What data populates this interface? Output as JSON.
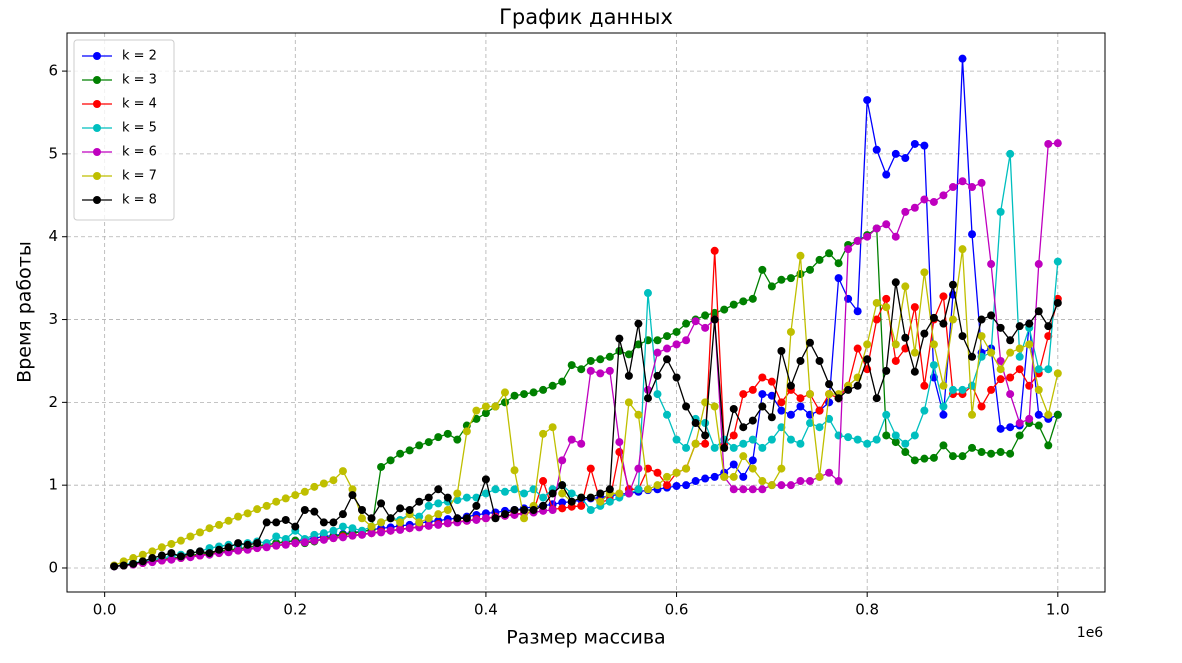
{
  "chart_data": {
    "type": "line",
    "title": "График данных",
    "xlabel": "Размер массива",
    "ylabel": "Время работы",
    "x_offset_label": "1e6",
    "grid": true,
    "legend": "upper left",
    "xlim": [
      -39500,
      1049500
    ],
    "ylim": [
      -0.29,
      6.46
    ],
    "xticks": [
      {
        "value": 0,
        "label": "0.0"
      },
      {
        "value": 200000,
        "label": "0.2"
      },
      {
        "value": 400000,
        "label": "0.4"
      },
      {
        "value": 600000,
        "label": "0.6"
      },
      {
        "value": 800000,
        "label": "0.8"
      },
      {
        "value": 1000000,
        "label": "1.0"
      }
    ],
    "yticks": [
      0,
      1,
      2,
      3,
      4,
      5,
      6
    ],
    "x": [
      10000,
      20000,
      30000,
      40000,
      50000,
      60000,
      70000,
      80000,
      90000,
      100000,
      110000,
      120000,
      130000,
      140000,
      150000,
      160000,
      170000,
      180000,
      190000,
      200000,
      210000,
      220000,
      230000,
      240000,
      250000,
      260000,
      270000,
      280000,
      290000,
      300000,
      310000,
      320000,
      330000,
      340000,
      350000,
      360000,
      370000,
      380000,
      390000,
      400000,
      410000,
      420000,
      430000,
      440000,
      450000,
      460000,
      470000,
      480000,
      490000,
      500000,
      510000,
      520000,
      530000,
      540000,
      550000,
      560000,
      570000,
      580000,
      590000,
      600000,
      610000,
      620000,
      630000,
      640000,
      650000,
      660000,
      670000,
      680000,
      690000,
      700000,
      710000,
      720000,
      730000,
      740000,
      750000,
      760000,
      770000,
      780000,
      790000,
      800000,
      810000,
      820000,
      830000,
      840000,
      850000,
      860000,
      870000,
      880000,
      890000,
      900000,
      910000,
      920000,
      930000,
      940000,
      950000,
      960000,
      970000,
      980000,
      990000,
      1000000
    ],
    "series": [
      {
        "name": "k = 2",
        "color": "#0000ff",
        "values": [
          0.02,
          0.03,
          0.05,
          0.07,
          0.08,
          0.1,
          0.11,
          0.13,
          0.15,
          0.16,
          0.18,
          0.2,
          0.21,
          0.23,
          0.25,
          0.26,
          0.28,
          0.3,
          0.31,
          0.33,
          0.34,
          0.36,
          0.38,
          0.39,
          0.41,
          0.43,
          0.44,
          0.46,
          0.48,
          0.49,
          0.51,
          0.52,
          0.54,
          0.56,
          0.57,
          0.59,
          0.6,
          0.62,
          0.64,
          0.66,
          0.67,
          0.69,
          0.7,
          0.72,
          0.74,
          0.75,
          0.77,
          0.79,
          0.8,
          0.82,
          0.84,
          0.85,
          0.87,
          0.89,
          0.9,
          0.92,
          0.94,
          0.95,
          0.97,
          0.99,
          1.0,
          1.05,
          1.08,
          1.1,
          1.15,
          1.25,
          1.1,
          1.3,
          2.1,
          2.08,
          1.9,
          1.85,
          1.95,
          1.85,
          1.9,
          2.0,
          3.5,
          3.25,
          3.1,
          5.65,
          5.05,
          4.75,
          5.0,
          4.95,
          5.12,
          5.1,
          2.3,
          1.85,
          3.3,
          6.15,
          4.03,
          2.6,
          2.65,
          1.68,
          1.7,
          1.72,
          2.95,
          1.85,
          1.8,
          1.85
        ]
      },
      {
        "name": "k = 3",
        "color": "#008000",
        "values": [
          0.02,
          0.03,
          0.05,
          0.07,
          0.08,
          0.1,
          0.12,
          0.13,
          0.15,
          0.17,
          0.18,
          0.2,
          0.22,
          0.23,
          0.25,
          0.27,
          0.28,
          0.3,
          0.32,
          0.33,
          0.3,
          0.32,
          0.35,
          0.38,
          0.4,
          0.42,
          0.44,
          0.46,
          1.22,
          1.3,
          1.38,
          1.42,
          1.48,
          1.52,
          1.58,
          1.62,
          1.55,
          1.72,
          1.8,
          1.87,
          1.95,
          2.0,
          2.08,
          2.1,
          2.12,
          2.15,
          2.2,
          2.25,
          2.45,
          2.4,
          2.5,
          2.52,
          2.55,
          2.62,
          2.58,
          2.7,
          2.75,
          2.75,
          2.8,
          2.85,
          2.95,
          3.0,
          3.05,
          3.08,
          3.12,
          3.18,
          3.22,
          3.25,
          3.6,
          3.4,
          3.48,
          3.5,
          3.55,
          3.6,
          3.72,
          3.8,
          3.68,
          3.9,
          3.95,
          4.02,
          4.1,
          1.6,
          1.52,
          1.4,
          1.3,
          1.32,
          1.33,
          1.48,
          1.35,
          1.35,
          1.45,
          1.4,
          1.38,
          1.4,
          1.38,
          1.6,
          1.75,
          1.72,
          1.48,
          1.85
        ]
      },
      {
        "name": "k = 4",
        "color": "#ff0000",
        "values": [
          0.02,
          0.03,
          0.05,
          0.06,
          0.08,
          0.09,
          0.11,
          0.12,
          0.14,
          0.15,
          0.17,
          0.18,
          0.2,
          0.21,
          0.23,
          0.24,
          0.26,
          0.27,
          0.29,
          0.3,
          0.32,
          0.33,
          0.35,
          0.36,
          0.38,
          0.39,
          0.41,
          0.42,
          0.44,
          0.45,
          0.47,
          0.48,
          0.5,
          0.51,
          0.53,
          0.54,
          0.56,
          0.57,
          0.59,
          0.6,
          0.62,
          0.63,
          0.65,
          0.66,
          0.68,
          1.05,
          0.71,
          0.72,
          0.74,
          0.75,
          1.2,
          0.8,
          0.82,
          1.4,
          0.95,
          0.95,
          1.2,
          1.15,
          1.0,
          1.15,
          1.2,
          1.5,
          1.5,
          3.83,
          1.5,
          1.6,
          2.1,
          2.15,
          2.3,
          2.25,
          2.0,
          2.15,
          2.05,
          2.1,
          1.9,
          2.1,
          2.05,
          2.2,
          2.65,
          2.4,
          3.0,
          3.25,
          2.5,
          2.65,
          3.15,
          2.2,
          3.0,
          3.28,
          2.1,
          2.1,
          2.2,
          1.95,
          2.15,
          2.28,
          2.3,
          2.4,
          2.2,
          2.35,
          2.8,
          3.25
        ]
      },
      {
        "name": "k = 5",
        "color": "#00bfbf",
        "values": [
          0.02,
          0.04,
          0.06,
          0.08,
          0.1,
          0.12,
          0.14,
          0.16,
          0.18,
          0.2,
          0.24,
          0.26,
          0.28,
          0.27,
          0.3,
          0.32,
          0.3,
          0.38,
          0.35,
          0.45,
          0.35,
          0.4,
          0.42,
          0.45,
          0.5,
          0.48,
          0.45,
          0.5,
          0.55,
          0.6,
          0.58,
          0.65,
          0.62,
          0.75,
          0.78,
          0.8,
          0.82,
          0.85,
          0.85,
          0.9,
          0.95,
          0.92,
          0.95,
          0.9,
          0.95,
          0.85,
          0.95,
          1.0,
          0.9,
          0.85,
          0.7,
          0.75,
          0.8,
          0.85,
          0.9,
          0.95,
          3.32,
          2.1,
          1.85,
          1.55,
          1.45,
          1.8,
          1.75,
          1.45,
          1.55,
          1.45,
          1.5,
          1.55,
          1.45,
          1.55,
          1.7,
          1.55,
          1.5,
          1.75,
          1.7,
          1.8,
          1.6,
          1.58,
          1.55,
          1.5,
          1.55,
          1.85,
          1.6,
          1.5,
          1.6,
          1.9,
          2.45,
          1.95,
          2.15,
          2.15,
          2.2,
          2.55,
          2.6,
          4.3,
          5.0,
          2.55,
          2.9,
          2.4,
          2.4,
          3.7
        ]
      },
      {
        "name": "k = 6",
        "color": "#bf00bf",
        "values": [
          0.02,
          0.03,
          0.04,
          0.06,
          0.07,
          0.09,
          0.1,
          0.12,
          0.13,
          0.15,
          0.16,
          0.18,
          0.19,
          0.21,
          0.22,
          0.24,
          0.25,
          0.27,
          0.28,
          0.3,
          0.31,
          0.33,
          0.34,
          0.36,
          0.37,
          0.39,
          0.4,
          0.42,
          0.43,
          0.45,
          0.46,
          0.48,
          0.49,
          0.51,
          0.52,
          0.54,
          0.55,
          0.57,
          0.58,
          0.6,
          0.61,
          0.63,
          0.64,
          0.66,
          0.67,
          0.69,
          0.7,
          1.3,
          1.55,
          1.5,
          2.38,
          2.35,
          2.38,
          1.52,
          0.9,
          1.2,
          2.15,
          2.6,
          2.65,
          2.7,
          2.75,
          2.98,
          2.9,
          3.0,
          1.1,
          0.95,
          0.95,
          0.95,
          0.95,
          1.0,
          1.0,
          1.0,
          1.05,
          1.05,
          1.1,
          1.15,
          1.05,
          3.85,
          3.95,
          4.0,
          4.1,
          4.15,
          4.0,
          4.3,
          4.35,
          4.45,
          4.42,
          4.5,
          4.6,
          4.67,
          4.6,
          4.65,
          3.67,
          2.5,
          2.1,
          1.75,
          1.8,
          3.67,
          5.12,
          5.13
        ]
      },
      {
        "name": "k = 7",
        "color": "#bfbf00",
        "values": [
          0.03,
          0.08,
          0.12,
          0.16,
          0.2,
          0.25,
          0.29,
          0.33,
          0.38,
          0.43,
          0.48,
          0.52,
          0.57,
          0.62,
          0.66,
          0.71,
          0.75,
          0.8,
          0.84,
          0.88,
          0.92,
          0.98,
          1.02,
          1.06,
          1.17,
          0.95,
          0.6,
          0.5,
          0.55,
          0.6,
          0.55,
          0.65,
          0.55,
          0.6,
          0.65,
          0.7,
          0.9,
          1.65,
          1.9,
          1.95,
          1.95,
          2.12,
          1.18,
          0.6,
          0.75,
          1.62,
          1.7,
          0.9,
          0.8,
          0.85,
          0.85,
          0.8,
          0.9,
          0.9,
          2.0,
          1.85,
          0.95,
          1.0,
          1.1,
          1.15,
          1.2,
          1.5,
          2.0,
          1.95,
          1.1,
          1.1,
          1.35,
          1.2,
          1.05,
          1.0,
          1.2,
          2.85,
          3.77,
          2.1,
          1.1,
          2.1,
          2.1,
          2.2,
          2.3,
          2.7,
          3.2,
          3.15,
          2.7,
          3.4,
          2.6,
          3.57,
          2.7,
          2.2,
          3.0,
          3.85,
          1.85,
          2.8,
          2.6,
          2.4,
          2.6,
          2.65,
          2.7,
          2.15,
          1.85,
          2.35
        ]
      },
      {
        "name": "k = 8",
        "color": "#000000",
        "values": [
          0.02,
          0.03,
          0.05,
          0.08,
          0.12,
          0.15,
          0.18,
          0.14,
          0.18,
          0.2,
          0.18,
          0.22,
          0.25,
          0.3,
          0.28,
          0.3,
          0.55,
          0.55,
          0.58,
          0.5,
          0.7,
          0.68,
          0.55,
          0.55,
          0.65,
          0.88,
          0.7,
          0.6,
          0.78,
          0.6,
          0.72,
          0.7,
          0.8,
          0.85,
          0.95,
          0.85,
          0.6,
          0.6,
          0.75,
          1.07,
          0.6,
          0.65,
          0.7,
          0.7,
          0.7,
          0.75,
          0.9,
          1.0,
          0.8,
          0.85,
          0.85,
          0.9,
          0.95,
          2.77,
          2.32,
          2.95,
          2.05,
          2.32,
          2.52,
          2.3,
          1.95,
          1.75,
          1.6,
          3.0,
          1.45,
          1.92,
          1.7,
          1.78,
          1.95,
          1.82,
          2.62,
          2.2,
          2.5,
          2.72,
          2.5,
          2.22,
          2.05,
          2.15,
          2.2,
          2.52,
          2.05,
          2.38,
          3.45,
          2.78,
          2.37,
          2.83,
          3.02,
          2.95,
          3.42,
          2.8,
          2.55,
          3.0,
          3.05,
          2.9,
          2.75,
          2.92,
          2.95,
          3.1,
          2.92,
          3.2
        ]
      }
    ]
  }
}
